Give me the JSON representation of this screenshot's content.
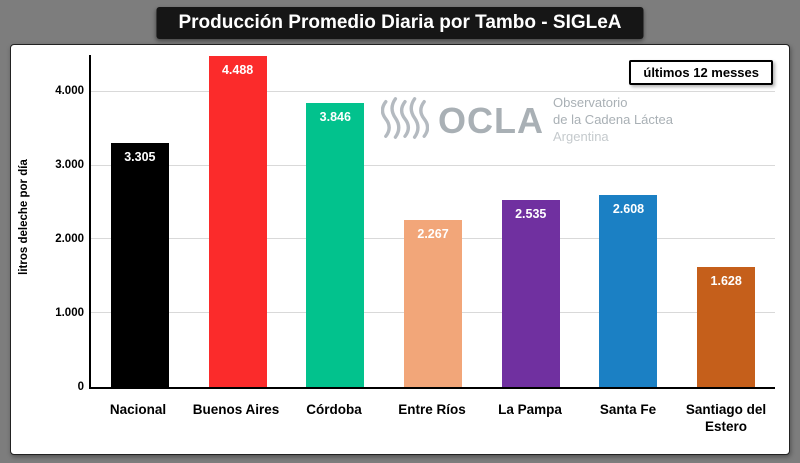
{
  "page": {
    "title": "Producción Promedio Diaria por Tambo - SIGLeA",
    "badge": "últimos 12 messes"
  },
  "watermark": {
    "logo_text": "OCLA",
    "line1": "Observatorio",
    "line2": "de la Cadena Láctea",
    "line3": "Argentina"
  },
  "chart_data": {
    "type": "bar",
    "title": "Producción Promedio Diaria por Tambo - SIGLeA",
    "annotation": "últimos 12 messes",
    "xlabel": "",
    "ylabel": "litros deleche por día",
    "ylim": [
      0,
      4500
    ],
    "grid": true,
    "legend": false,
    "yticks": [
      {
        "value": 0,
        "label": "0"
      },
      {
        "value": 1000,
        "label": "1.000"
      },
      {
        "value": 2000,
        "label": "2.000"
      },
      {
        "value": 3000,
        "label": "3.000"
      },
      {
        "value": 4000,
        "label": "4.000"
      }
    ],
    "categories": [
      "Nacional",
      "Buenos Aires",
      "Córdoba",
      "Entre Ríos",
      "La Pampa",
      "Santa Fe",
      "Santiago del Estero"
    ],
    "values": [
      3305,
      4488,
      3846,
      2267,
      2535,
      2608,
      1628
    ],
    "value_labels": [
      "3.305",
      "4.488",
      "3.846",
      "2.267",
      "2.535",
      "2.608",
      "1.628"
    ],
    "colors": [
      "#000000",
      "#fb2b2b",
      "#02c28d",
      "#f2a679",
      "#7030a0",
      "#1b80c4",
      "#c55f1b"
    ]
  }
}
